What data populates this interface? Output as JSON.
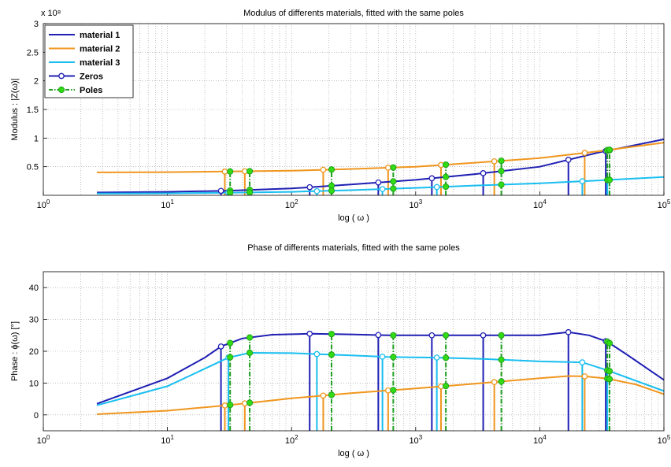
{
  "colors": {
    "material1": "#1f1fb4",
    "material2": "#f0961e",
    "material3": "#19bef0",
    "zeros": "#1f1fb4",
    "poles": "#1fa01f",
    "poles_marker": "#32dc14"
  },
  "chart_data": [
    {
      "type": "line",
      "title": "Modulus of differents materials, fitted with the same poles",
      "xlabel": "log ( ω )",
      "ylabel": "Modulus : |Z(ω)|",
      "y_exponent": "x 10⁸",
      "xscale": "log",
      "xlim": [
        1,
        100000
      ],
      "ylim": [
        0,
        3
      ],
      "grid": true,
      "legend_placement": "top-left",
      "xticks": [
        {
          "label": "10",
          "sup": "0",
          "value": 1
        },
        {
          "label": "10",
          "sup": "1",
          "value": 10
        },
        {
          "label": "10",
          "sup": "2",
          "value": 100
        },
        {
          "label": "10",
          "sup": "3",
          "value": 1000
        },
        {
          "label": "10",
          "sup": "4",
          "value": 10000
        },
        {
          "label": "10",
          "sup": "5",
          "value": 100000
        }
      ],
      "yticks": [
        {
          "label": "0.5",
          "value": 0.5
        },
        {
          "label": "1",
          "value": 1
        },
        {
          "label": "1.5",
          "value": 1.5
        },
        {
          "label": "2",
          "value": 2
        },
        {
          "label": "2.5",
          "value": 2.5
        },
        {
          "label": "3",
          "value": 3
        }
      ],
      "legend": [
        "material 1",
        "material 2",
        "material 3",
        "Zeros",
        "Poles"
      ],
      "series": [
        {
          "name": "material 1",
          "color_key": "material1",
          "x": [
            2.7,
            10,
            30,
            100,
            300,
            1000,
            3000,
            10000,
            30000,
            100000
          ],
          "y": [
            0.05,
            0.06,
            0.08,
            0.12,
            0.19,
            0.27,
            0.37,
            0.5,
            0.75,
            0.98
          ]
        },
        {
          "name": "material 2",
          "color_key": "material2",
          "x": [
            2.7,
            10,
            30,
            100,
            300,
            1000,
            3000,
            10000,
            30000,
            100000
          ],
          "y": [
            0.4,
            0.405,
            0.415,
            0.43,
            0.46,
            0.5,
            0.57,
            0.65,
            0.77,
            0.92
          ]
        },
        {
          "name": "material 3",
          "color_key": "material3",
          "x": [
            2.7,
            10,
            30,
            100,
            300,
            1000,
            3000,
            10000,
            30000,
            100000
          ],
          "y": [
            0.03,
            0.035,
            0.045,
            0.06,
            0.09,
            0.13,
            0.17,
            0.21,
            0.26,
            0.32
          ]
        }
      ],
      "zeros": [
        {
          "series": "material 1",
          "x": [
            27,
            140,
            500,
            1350,
            3500,
            17000,
            34000
          ]
        },
        {
          "series": "material 2",
          "x": [
            29,
            42,
            180,
            600,
            1600,
            4300,
            23000
          ]
        },
        {
          "series": "material 3",
          "x": [
            31,
            160,
            540,
            1480,
            22000,
            35000
          ]
        }
      ],
      "poles": [
        32,
        46,
        210,
        660,
        1750,
        4900,
        35000,
        36500
      ]
    },
    {
      "type": "line",
      "title": "Phase of differents materials, fitted with the same poles",
      "xlabel": "log ( ω )",
      "ylabel": "Phase : ϕ(ω)    [°]",
      "xscale": "log",
      "xlim": [
        1,
        100000
      ],
      "ylim": [
        -5,
        45
      ],
      "grid": true,
      "xticks": [
        {
          "label": "10",
          "sup": "0",
          "value": 1
        },
        {
          "label": "10",
          "sup": "1",
          "value": 10
        },
        {
          "label": "10",
          "sup": "2",
          "value": 100
        },
        {
          "label": "10",
          "sup": "3",
          "value": 1000
        },
        {
          "label": "10",
          "sup": "4",
          "value": 10000
        },
        {
          "label": "10",
          "sup": "5",
          "value": 100000
        }
      ],
      "yticks": [
        {
          "label": "0",
          "value": 0
        },
        {
          "label": "10",
          "value": 10
        },
        {
          "label": "20",
          "value": 20
        },
        {
          "label": "30",
          "value": 30
        },
        {
          "label": "40",
          "value": 40
        }
      ],
      "series": [
        {
          "name": "material 1",
          "color_key": "material1",
          "x": [
            2.7,
            10,
            20,
            27,
            40,
            70,
            140,
            300,
            600,
            1350,
            3500,
            10000,
            17000,
            25000,
            35000,
            50000,
            100000
          ],
          "y": [
            3.5,
            11.5,
            18,
            21.5,
            24,
            25.2,
            25.5,
            25.3,
            25.0,
            25.0,
            25.0,
            25.0,
            26,
            25,
            23,
            19,
            11
          ]
        },
        {
          "name": "material 2",
          "color_key": "material2",
          "x": [
            2.7,
            10,
            30,
            100,
            300,
            1000,
            3000,
            10000,
            17000,
            23000,
            35000,
            60000,
            100000
          ],
          "y": [
            0.2,
            1.3,
            3.0,
            5.2,
            6.8,
            8.3,
            9.8,
            11.5,
            12.2,
            12.1,
            11.4,
            9.5,
            6.5
          ]
        },
        {
          "name": "material 3",
          "color_key": "material3",
          "x": [
            2.7,
            10,
            20,
            31,
            46,
            100,
            160,
            300,
            600,
            1480,
            3500,
            10000,
            22000,
            35000,
            100000
          ],
          "y": [
            3,
            9,
            14.5,
            18,
            19.5,
            19.4,
            19.1,
            18.7,
            18.2,
            18.0,
            17.6,
            16.8,
            16.5,
            14,
            7.5
          ]
        }
      ],
      "zeros": [
        {
          "series": "material 1",
          "x": [
            27,
            140,
            500,
            1350,
            3500,
            17000,
            34000
          ]
        },
        {
          "series": "material 2",
          "x": [
            29,
            42,
            180,
            600,
            1600,
            4300,
            23000
          ]
        },
        {
          "series": "material 3",
          "x": [
            31,
            160,
            540,
            1480,
            22000,
            35000
          ]
        }
      ],
      "poles": [
        32,
        46,
        210,
        660,
        1750,
        4900,
        35000,
        36500
      ]
    }
  ]
}
